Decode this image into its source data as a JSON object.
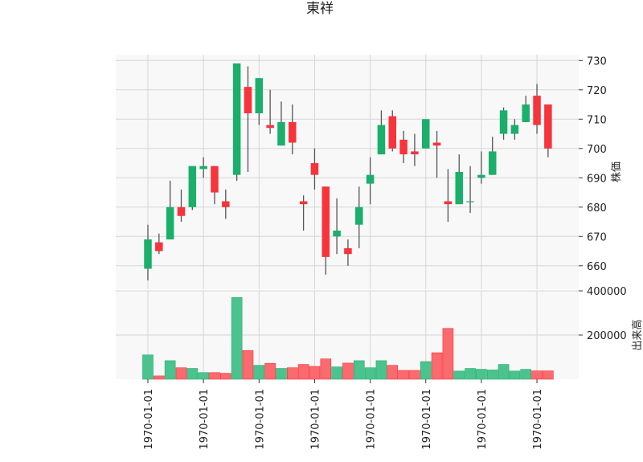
{
  "chart_data": {
    "type": "candlestick",
    "title": "東祥",
    "price_axis": {
      "label": "株価",
      "ylim": [
        652,
        732
      ],
      "ticks": [
        660,
        670,
        680,
        690,
        700,
        710,
        720,
        730
      ],
      "tick_labels": [
        "660",
        "670",
        "680",
        "690",
        "700",
        "710",
        "720",
        "730"
      ]
    },
    "volume_axis": {
      "label": "出来高",
      "ylim": [
        0,
        400000
      ],
      "ticks": [
        200000,
        400000
      ],
      "tick_labels": [
        "200000",
        "400000"
      ]
    },
    "x_tick_labels": [
      "1970-01-01",
      "1970-01-01",
      "1970-01-01",
      "1970-01-01",
      "1970-01-01",
      "1970-01-01",
      "1970-01-01",
      "1970-01-01"
    ],
    "x_tick_index": [
      0,
      5,
      10,
      15,
      20,
      25,
      30,
      35
    ],
    "grid": true,
    "colors": {
      "up": "#1aaf6a",
      "down": "#f7333c",
      "vol_up": "#4cc38e",
      "vol_down": "#fa6a6e",
      "wick": "#555555",
      "panel_bg": "#f8f8f8",
      "grid": "#d5d5d5"
    },
    "candles": [
      {
        "open": 659,
        "high": 674,
        "low": 655,
        "close": 669,
        "volume": 110000
      },
      {
        "open": 668,
        "high": 671,
        "low": 664,
        "close": 665,
        "volume": 15000
      },
      {
        "open": 669,
        "high": 689,
        "low": 669,
        "close": 680,
        "volume": 84000
      },
      {
        "open": 680,
        "high": 686,
        "low": 675,
        "close": 677,
        "volume": 52000
      },
      {
        "open": 680,
        "high": 694,
        "low": 679,
        "close": 694,
        "volume": 49000
      },
      {
        "open": 693,
        "high": 697,
        "low": 690,
        "close": 694,
        "volume": 30000
      },
      {
        "open": 694,
        "high": 694,
        "low": 681,
        "close": 685,
        "volume": 30000
      },
      {
        "open": 682,
        "high": 686,
        "low": 676,
        "close": 680,
        "volume": 27000
      },
      {
        "open": 691,
        "high": 729,
        "low": 689,
        "close": 729,
        "volume": 370000
      },
      {
        "open": 721,
        "high": 728,
        "low": 692,
        "close": 712,
        "volume": 130000
      },
      {
        "open": 712,
        "high": 724,
        "low": 708,
        "close": 724,
        "volume": 63000
      },
      {
        "open": 708,
        "high": 720,
        "low": 705,
        "close": 707,
        "volume": 72000
      },
      {
        "open": 701,
        "high": 716,
        "low": 701,
        "close": 709,
        "volume": 49000
      },
      {
        "open": 709,
        "high": 715,
        "low": 698,
        "close": 702,
        "volume": 52000
      },
      {
        "open": 682,
        "high": 684,
        "low": 672,
        "close": 681,
        "volume": 67000
      },
      {
        "open": 695,
        "high": 700,
        "low": 686,
        "close": 691,
        "volume": 58000
      },
      {
        "open": 687,
        "high": 687,
        "low": 657,
        "close": 663,
        "volume": 92000
      },
      {
        "open": 670,
        "high": 683,
        "low": 664,
        "close": 672,
        "volume": 56000
      },
      {
        "open": 666,
        "high": 669,
        "low": 660,
        "close": 664,
        "volume": 73000
      },
      {
        "open": 674,
        "high": 687,
        "low": 666,
        "close": 680,
        "volume": 84000
      },
      {
        "open": 688,
        "high": 697,
        "low": 681,
        "close": 691,
        "volume": 52000
      },
      {
        "open": 698,
        "high": 713,
        "low": 698,
        "close": 708,
        "volume": 84000
      },
      {
        "open": 711,
        "high": 713,
        "low": 699,
        "close": 700,
        "volume": 63000
      },
      {
        "open": 703,
        "high": 706,
        "low": 695,
        "close": 698,
        "volume": 40000
      },
      {
        "open": 699,
        "high": 705,
        "low": 694,
        "close": 698,
        "volume": 40000
      },
      {
        "open": 700,
        "high": 710,
        "low": 700,
        "close": 710,
        "volume": 80000
      },
      {
        "open": 702,
        "high": 706,
        "low": 690,
        "close": 701,
        "volume": 120000
      },
      {
        "open": 682,
        "high": 693,
        "low": 675,
        "close": 681,
        "volume": 230000
      },
      {
        "open": 681,
        "high": 698,
        "low": 681,
        "close": 692,
        "volume": 37000
      },
      {
        "open": 682,
        "high": 694,
        "low": 678,
        "close": 682,
        "volume": 49000
      },
      {
        "open": 690,
        "high": 699,
        "low": 688,
        "close": 691,
        "volume": 45000
      },
      {
        "open": 691,
        "high": 704,
        "low": 691,
        "close": 699,
        "volume": 42000
      },
      {
        "open": 705,
        "high": 714,
        "low": 703,
        "close": 713,
        "volume": 67000
      },
      {
        "open": 705,
        "high": 710,
        "low": 703,
        "close": 708,
        "volume": 37000
      },
      {
        "open": 709,
        "high": 718,
        "low": 709,
        "close": 715,
        "volume": 45000
      },
      {
        "open": 718,
        "high": 722,
        "low": 705,
        "close": 708,
        "volume": 38000
      },
      {
        "open": 715,
        "high": 715,
        "low": 697,
        "close": 700,
        "volume": 38000
      }
    ]
  }
}
